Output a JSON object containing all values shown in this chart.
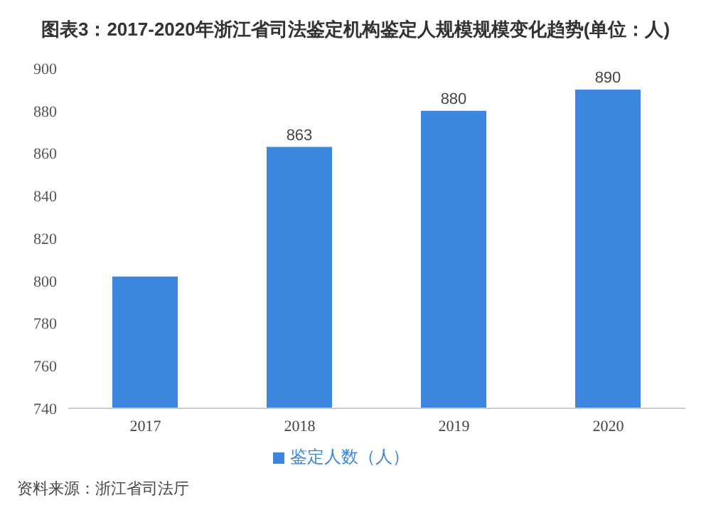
{
  "chart_data": {
    "type": "bar",
    "title": "图表3：2017-2020年浙江省司法鉴定机构鉴定人规模规模变化趋势(单位：人)",
    "categories": [
      "2017",
      "2018",
      "2019",
      "2020"
    ],
    "series": [
      {
        "name": "鉴定人数（人）",
        "color": "#3c86e0",
        "values": [
          802,
          863,
          880,
          890
        ],
        "value_labels": [
          null,
          "863",
          "880",
          "890"
        ]
      }
    ],
    "ylim": [
      740,
      900
    ],
    "yticks": [
      740,
      760,
      780,
      800,
      820,
      840,
      860,
      880,
      900
    ],
    "grid": false,
    "legend": "bottom",
    "annotations": [
      "资料来源：浙江省司法厅"
    ]
  }
}
